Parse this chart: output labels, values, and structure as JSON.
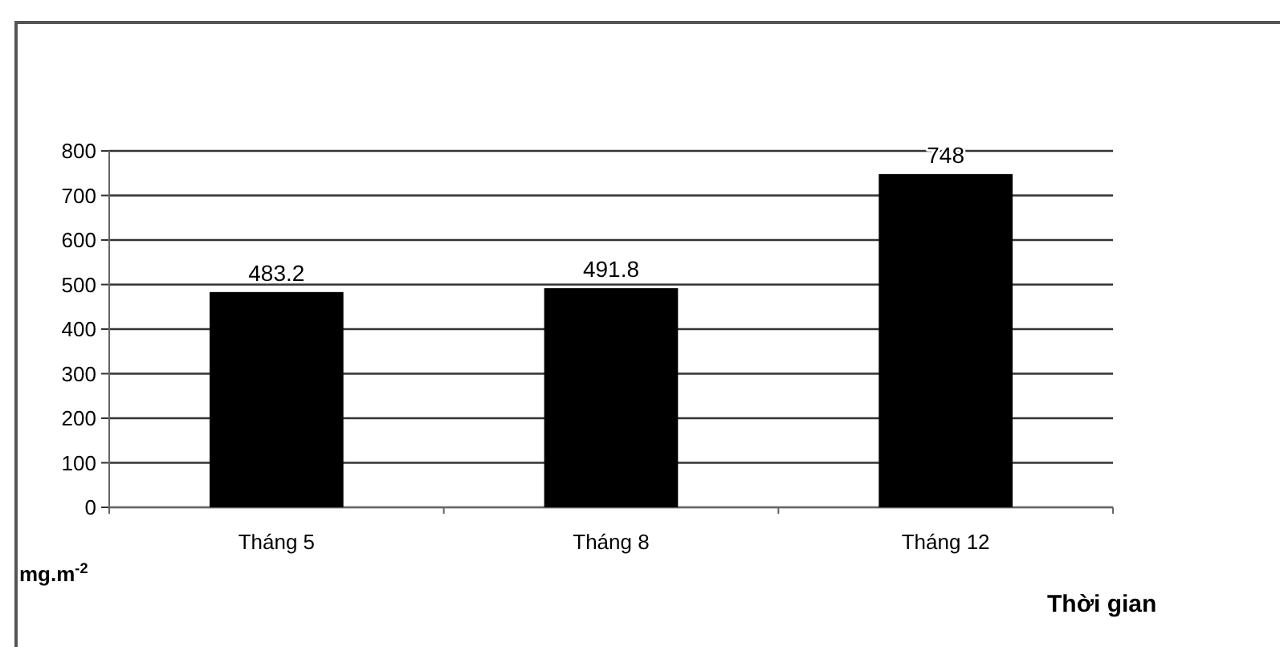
{
  "chart_data": {
    "type": "bar",
    "xlabel": "Thời gian",
    "ylabel": "mg.m$^{-2}$",
    "categories": [
      "Tháng 5",
      "Tháng 8",
      "Tháng 12"
    ],
    "values": [
      483.2,
      491.8,
      748
    ],
    "color": "#000000",
    "ylim": [
      0,
      800
    ],
    "yticks": [
      0,
      100,
      200,
      300,
      400,
      500,
      600,
      700,
      800
    ],
    "grid": "y",
    "data_labels": true
  }
}
